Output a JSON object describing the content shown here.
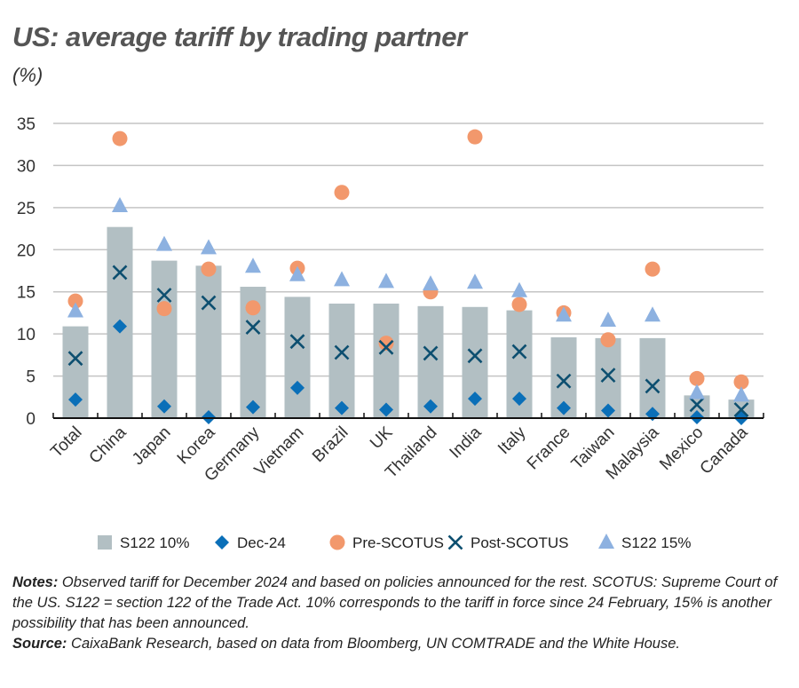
{
  "title": "US: average tariff by trading partner",
  "unit": "(%)",
  "chart_data": {
    "type": "bar",
    "title": "US: average tariff by trading partner",
    "ylabel": "(%)",
    "ylim": [
      0,
      35
    ],
    "yticks": [
      0,
      5,
      10,
      15,
      20,
      25,
      30,
      35
    ],
    "grid": true,
    "legend_position": "bottom",
    "categories": [
      "Total",
      "China",
      "Japan",
      "Korea",
      "Germany",
      "Vietnam",
      "Brazil",
      "UK",
      "Thailand",
      "India",
      "Italy",
      "France",
      "Taiwan",
      "Malaysia",
      "Mexico",
      "Canada"
    ],
    "series": [
      {
        "name": "S122 10%",
        "kind": "bar",
        "color": "#b2bfc3",
        "values": [
          10.9,
          22.7,
          18.7,
          18.1,
          15.6,
          14.4,
          13.6,
          13.6,
          13.3,
          13.2,
          12.8,
          9.6,
          9.5,
          9.5,
          2.7,
          2.2
        ]
      },
      {
        "name": "Dec-24",
        "kind": "diamond",
        "color": "#0a6fb8",
        "values": [
          2.2,
          10.9,
          1.4,
          0.1,
          1.3,
          3.6,
          1.2,
          1.0,
          1.4,
          2.3,
          2.3,
          1.2,
          0.9,
          0.5,
          0.1,
          0.0
        ]
      },
      {
        "name": "Pre-SCOTUS",
        "kind": "circle",
        "color": "#f2986c",
        "values": [
          13.9,
          33.2,
          13.0,
          17.7,
          13.1,
          17.8,
          26.8,
          8.9,
          15.0,
          33.4,
          13.5,
          12.5,
          9.3,
          17.7,
          4.7,
          4.3
        ]
      },
      {
        "name": "Post-SCOTUS",
        "kind": "cross",
        "color": "#0d4f70",
        "values": [
          7.1,
          17.3,
          14.6,
          13.7,
          10.8,
          9.1,
          7.8,
          8.4,
          7.7,
          7.4,
          7.9,
          4.4,
          5.1,
          3.8,
          1.6,
          1.0
        ]
      },
      {
        "name": "S122 15%",
        "kind": "triangle",
        "color": "#8db1e0",
        "values": [
          12.7,
          25.2,
          20.6,
          20.2,
          18.0,
          17.0,
          16.4,
          16.2,
          15.9,
          16.1,
          15.1,
          12.2,
          11.6,
          12.2,
          3.0,
          2.7
        ]
      }
    ]
  },
  "notes": {
    "notes_label": "Notes:",
    "notes_text": " Observed tariff for December 2024 and based on policies announced for the rest. SCOTUS: Supreme Court of the US. S122 = section 122 of the Trade Act. 10% corresponds to the tariff in force since 24 February, 15% is another possibility that has been announced.",
    "source_label": "Source:",
    "source_text": " CaixaBank Research, based on data from Bloomberg, UN COMTRADE and the White House."
  }
}
